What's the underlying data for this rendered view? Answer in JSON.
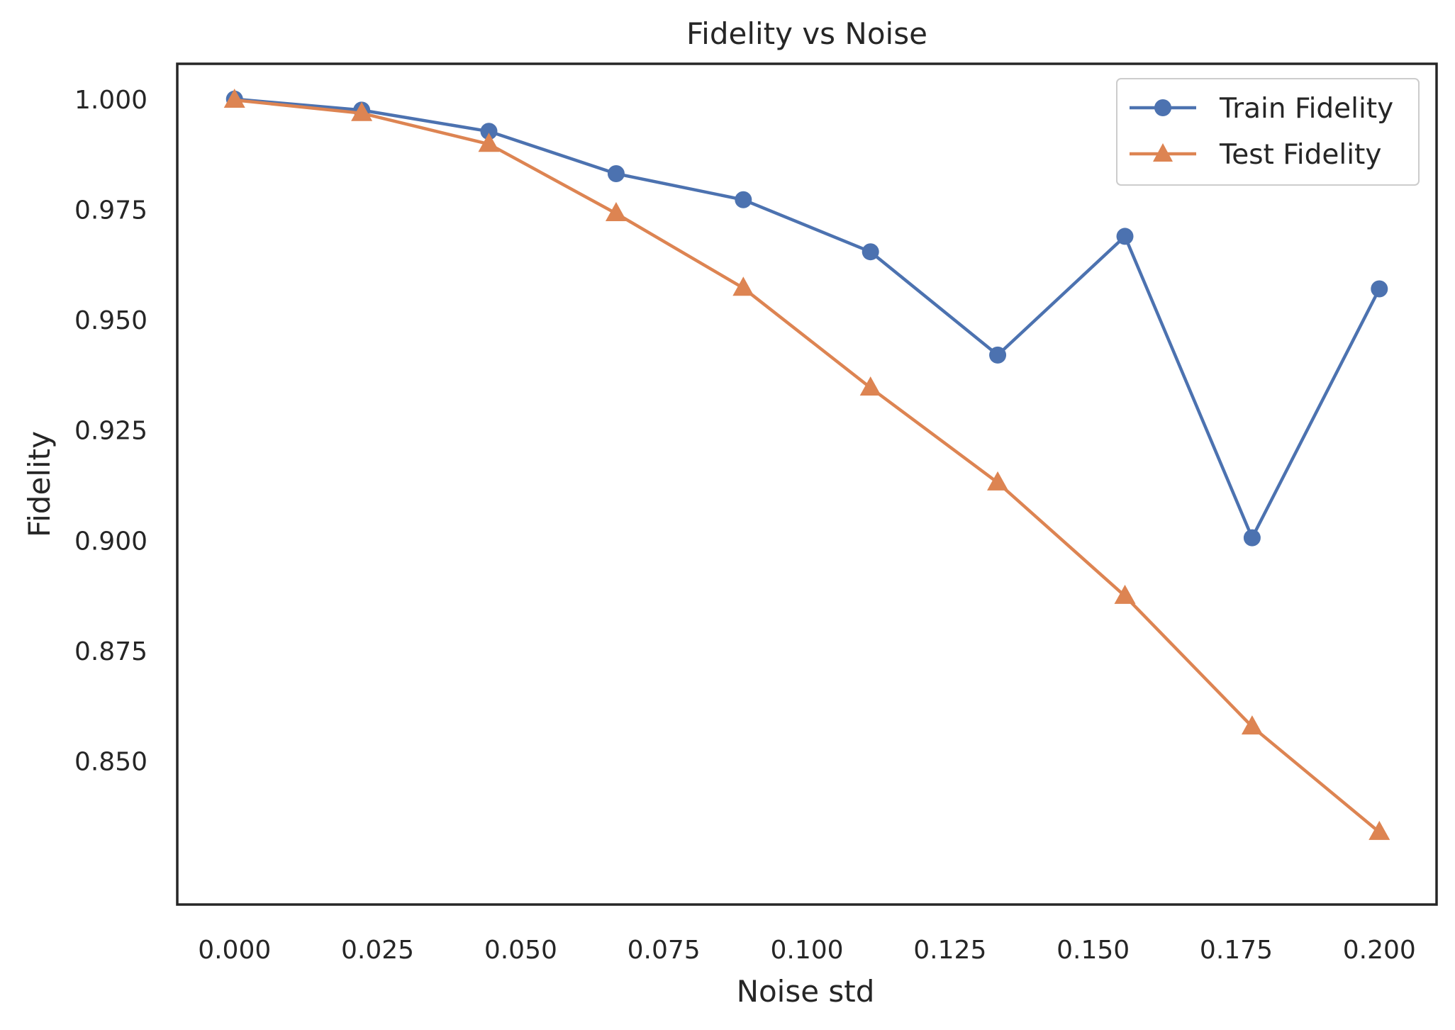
{
  "chart_data": {
    "type": "line",
    "title": "Fidelity vs Noise",
    "xlabel": "Noise std",
    "ylabel": "Fidelity",
    "x": [
      0.0,
      0.02222,
      0.04444,
      0.06667,
      0.08889,
      0.11111,
      0.13333,
      0.15556,
      0.17778,
      0.2
    ],
    "xlim": [
      -0.01,
      0.21
    ],
    "ylim": [
      0.8175,
      1.008
    ],
    "xticks": [
      0.0,
      0.025,
      0.05,
      0.075,
      0.1,
      0.125,
      0.15,
      0.175,
      0.2
    ],
    "xtick_labels": [
      "0.000",
      "0.025",
      "0.050",
      "0.075",
      "0.100",
      "0.125",
      "0.150",
      "0.175",
      "0.200"
    ],
    "yticks": [
      0.85,
      0.875,
      0.9,
      0.925,
      0.95,
      0.975,
      1.0
    ],
    "ytick_labels": [
      "0.850",
      "0.875",
      "0.900",
      "0.925",
      "0.950",
      "0.975",
      "1.000"
    ],
    "grid": false,
    "legend_position": "top-right",
    "series": [
      {
        "name": "Train Fidelity",
        "marker": "circle",
        "color": "#4c72b0",
        "values": [
          1.0,
          0.9975,
          0.9927,
          0.9831,
          0.9772,
          0.9654,
          0.942,
          0.9689,
          0.9006,
          0.957
        ]
      },
      {
        "name": "Test Fidelity",
        "marker": "triangle",
        "color": "#dd8452",
        "values": [
          0.9998,
          0.9968,
          0.9898,
          0.9741,
          0.9572,
          0.9346,
          0.9131,
          0.8874,
          0.8578,
          0.8339
        ]
      }
    ]
  }
}
